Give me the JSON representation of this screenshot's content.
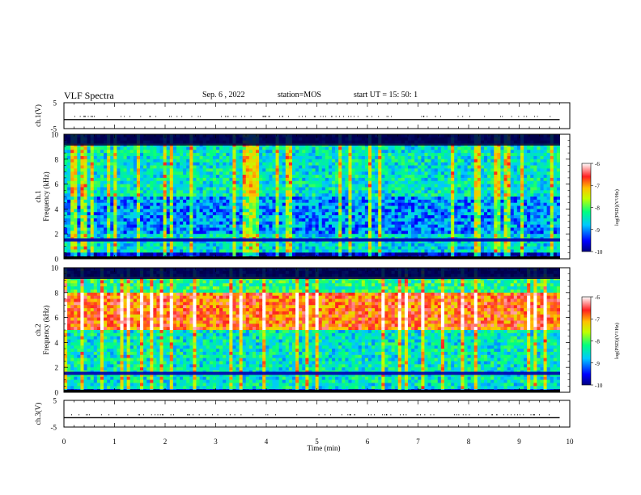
{
  "header": {
    "title": "VLF Spectra",
    "date": "Sep. 6 , 2022",
    "station": "station=MOS",
    "start": "start UT =  15: 50: 1"
  },
  "chart_data": [
    {
      "type": "line",
      "title": "",
      "ylabel": "ch.1(V)",
      "ylim": [
        -5,
        5
      ],
      "yticks": [
        "5",
        "-5"
      ],
      "series": [
        {
          "values": [
            -1.5,
            -1.5
          ]
        }
      ]
    },
    {
      "type": "heatmap",
      "ylabel": "ch.1 Frequency (kHz)",
      "ylim": [
        0,
        10
      ],
      "yticks": [
        "0",
        "2",
        "4",
        "6",
        "8",
        "10"
      ],
      "colorbar": {
        "label": "log(PSD)(V²/Hz)",
        "ticks": [
          "-6",
          "-7",
          "-8",
          "-9",
          "-10"
        ],
        "range": [
          -10,
          -6
        ]
      },
      "noise_band_khz": [
        0.3,
        10
      ],
      "dominant_level": -9
    },
    {
      "type": "heatmap",
      "ylabel": "ch.2 Frequency (kHz)",
      "ylim": [
        0,
        10
      ],
      "yticks": [
        "0",
        "2",
        "4",
        "6",
        "8",
        "10"
      ],
      "colorbar": {
        "label": "log(PSD)(V²/Hz)",
        "ticks": [
          "-6",
          "-7",
          "-8",
          "-9",
          "-10"
        ],
        "range": [
          -10,
          -6
        ]
      },
      "intense_band_khz": [
        5,
        8
      ],
      "dominant_level": -7
    },
    {
      "type": "line",
      "ylabel": "ch.3(V)",
      "ylim": [
        -5,
        5
      ],
      "yticks": [
        "5",
        "-5"
      ],
      "series": [
        {
          "values": [
            -1.5,
            -1.5
          ]
        }
      ]
    }
  ],
  "xaxis": {
    "label": "Time (min)",
    "range": [
      0,
      10
    ],
    "ticks": [
      "0",
      "1",
      "2",
      "3",
      "4",
      "5",
      "6",
      "7",
      "8",
      "9",
      "10"
    ]
  }
}
